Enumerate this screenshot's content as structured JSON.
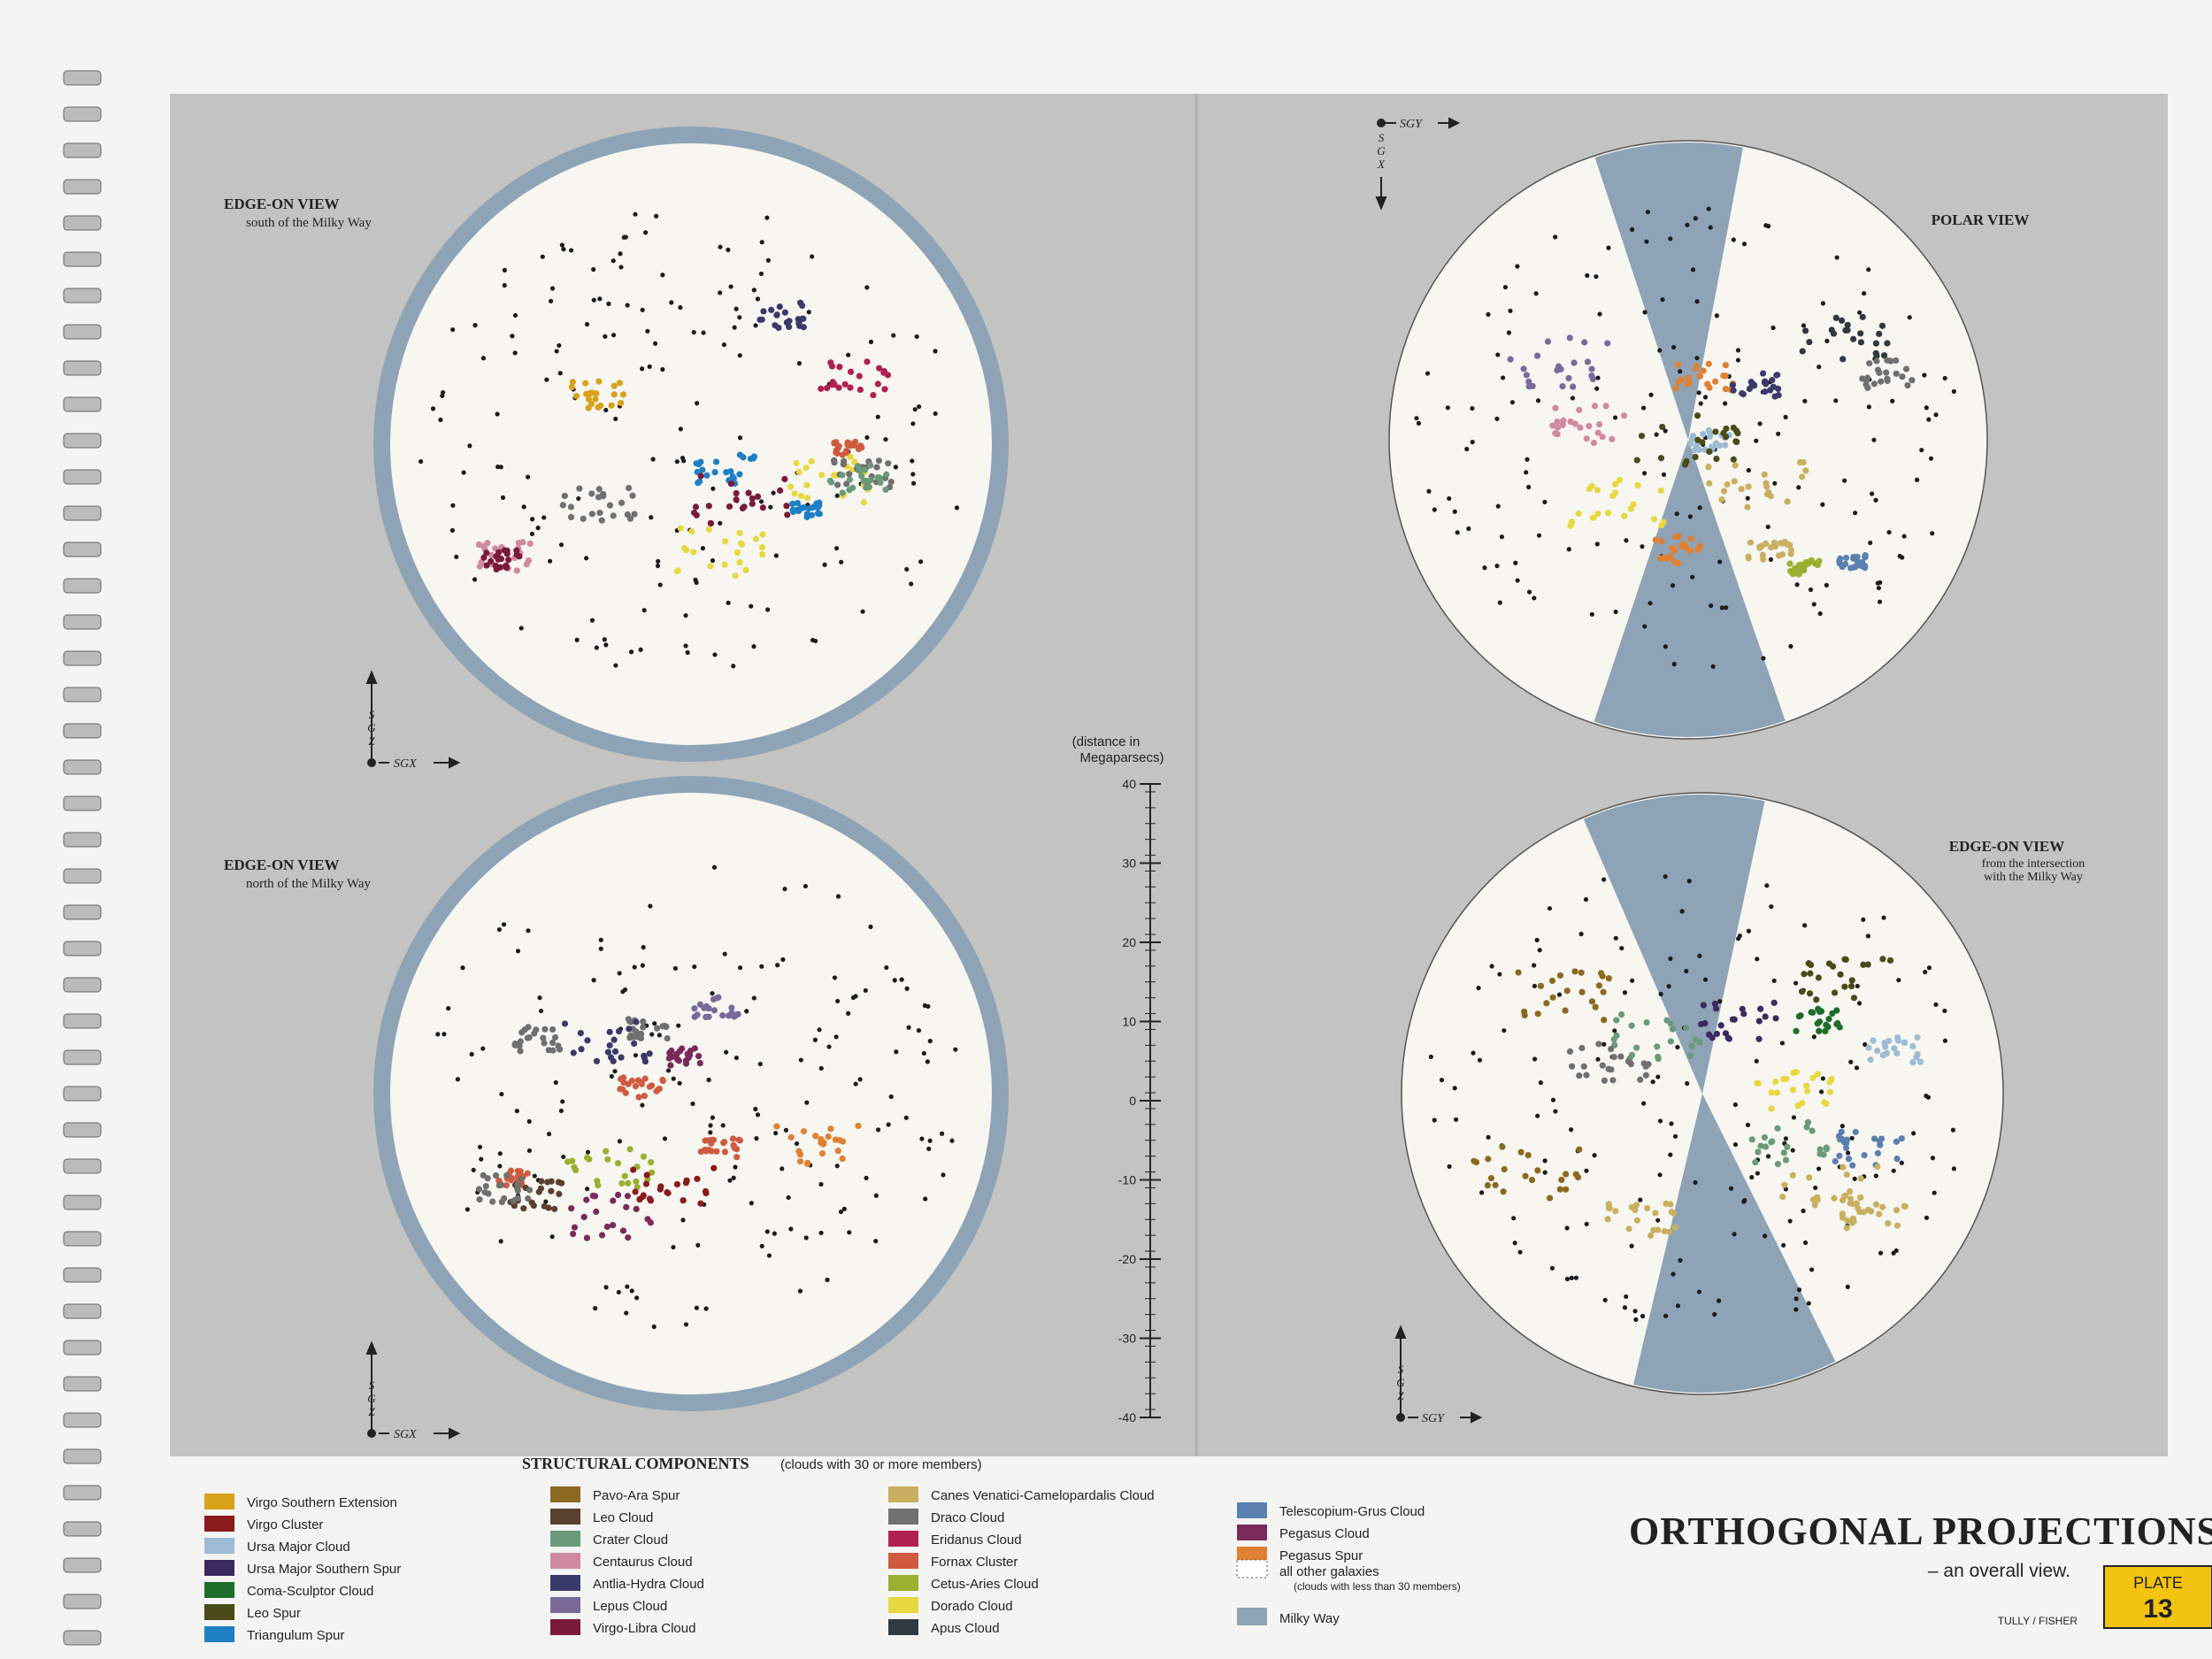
{
  "panels": [
    {
      "title": "EDGE-ON VIEW",
      "subtitle": "south of the Milky Way",
      "vertical_axis": "SGZ",
      "horizontal_axis": "SGX"
    },
    {
      "title": "EDGE-ON VIEW",
      "subtitle": "north of the Milky Way",
      "vertical_axis": "SGZ",
      "horizontal_axis": "SGX"
    },
    {
      "title": "POLAR VIEW",
      "vertical_axis": "SGX",
      "horizontal_axis": "SGY"
    },
    {
      "title": "EDGE-ON VIEW",
      "subtitle_lines": [
        "from the intersection",
        "with the Milky Way"
      ],
      "vertical_axis": "SGZ",
      "horizontal_axis": "SGY"
    }
  ],
  "scale": {
    "label_lines": [
      "(distance in",
      "Megaparsecs)"
    ],
    "ticks": [
      40,
      30,
      20,
      10,
      0,
      -10,
      -20,
      -30,
      -40
    ]
  },
  "legend": {
    "title": "STRUCTURAL COMPONENTS",
    "note": "(clouds with 30 or more members)",
    "items": [
      {
        "label": "Virgo Southern Extension",
        "color": "#d9a21b"
      },
      {
        "label": "Virgo Cluster",
        "color": "#8b1a1a"
      },
      {
        "label": "Ursa Major Cloud",
        "color": "#9dbbd4"
      },
      {
        "label": "Ursa Major Southern Spur",
        "color": "#3b2a5e"
      },
      {
        "label": "Coma-Sculptor Cloud",
        "color": "#1e6e2a"
      },
      {
        "label": "Leo Spur",
        "color": "#4a4a1a"
      },
      {
        "label": "Triangulum Spur",
        "color": "#1e7fc4"
      },
      {
        "label": "Pavo-Ara Spur",
        "color": "#8a6a20"
      },
      {
        "label": "Leo Cloud",
        "color": "#5a4030"
      },
      {
        "label": "Crater Cloud",
        "color": "#6a9a7a"
      },
      {
        "label": "Centaurus Cloud",
        "color": "#d08aa0"
      },
      {
        "label": "Antlia-Hydra Cloud",
        "color": "#3a3a6a"
      },
      {
        "label": "Lepus Cloud",
        "color": "#7a6a9a"
      },
      {
        "label": "Virgo-Libra Cloud",
        "color": "#7a1a3a"
      },
      {
        "label": "Canes Venatici-Camelopardalis Cloud",
        "color": "#c8b060"
      },
      {
        "label": "Draco Cloud",
        "color": "#707070"
      },
      {
        "label": "Eridanus Cloud",
        "color": "#b02050"
      },
      {
        "label": "Fornax Cluster",
        "color": "#d05a40"
      },
      {
        "label": "Cetus-Aries Cloud",
        "color": "#9ab030"
      },
      {
        "label": "Dorado Cloud",
        "color": "#e8d840"
      },
      {
        "label": "Apus Cloud",
        "color": "#303840"
      },
      {
        "label": "Telescopium-Grus Cloud",
        "color": "#5a80b0"
      },
      {
        "label": "Pegasus Cloud",
        "color": "#7a2a5a"
      },
      {
        "label": "Pegasus Spur",
        "color": "#e08030"
      }
    ],
    "other": {
      "label": "all other galaxies",
      "note": "(clouds with less than 30 members)"
    },
    "milky_way": "Milky Way"
  },
  "footer": {
    "title": "ORTHOGONAL PROJECTIONS",
    "subtitle": "– an overall view.",
    "credit": "TULLY / FISHER",
    "plate": "PLATE",
    "plate_number": 13
  }
}
